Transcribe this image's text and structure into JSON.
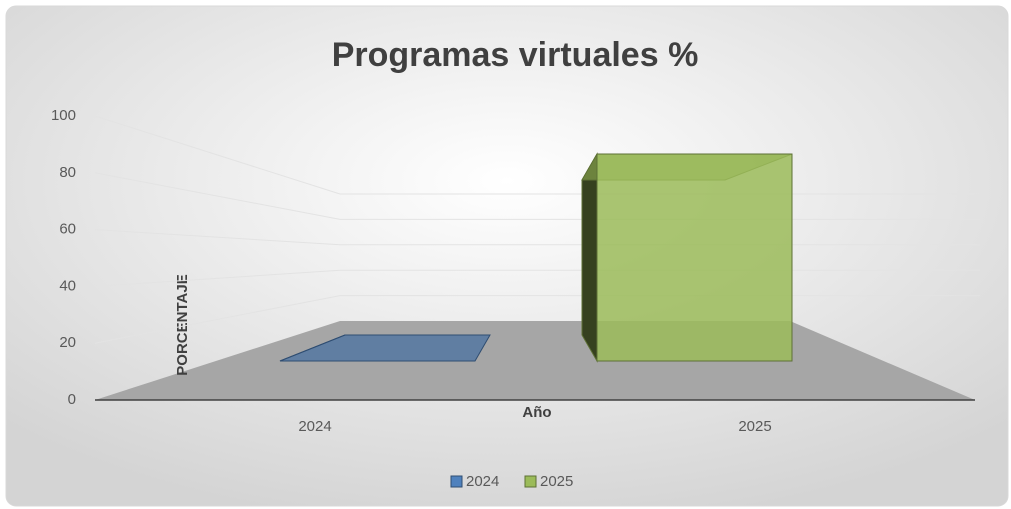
{
  "chart_data": {
    "type": "bar3d",
    "title": "Programas virtuales %",
    "x_label": "Año",
    "y_label": "PORCENTAJE",
    "categories": [
      "2024",
      "2025"
    ],
    "series": [
      {
        "name": "2024",
        "color": "#4f81bd",
        "values": [
          0,
          null
        ]
      },
      {
        "name": "2025",
        "color": "#9bbb59",
        "values": [
          null,
          100
        ]
      }
    ],
    "ylim": [
      0,
      100
    ],
    "yticks": [
      0,
      20,
      40,
      60,
      80,
      100
    ],
    "grid": true,
    "legend": "bottom"
  }
}
